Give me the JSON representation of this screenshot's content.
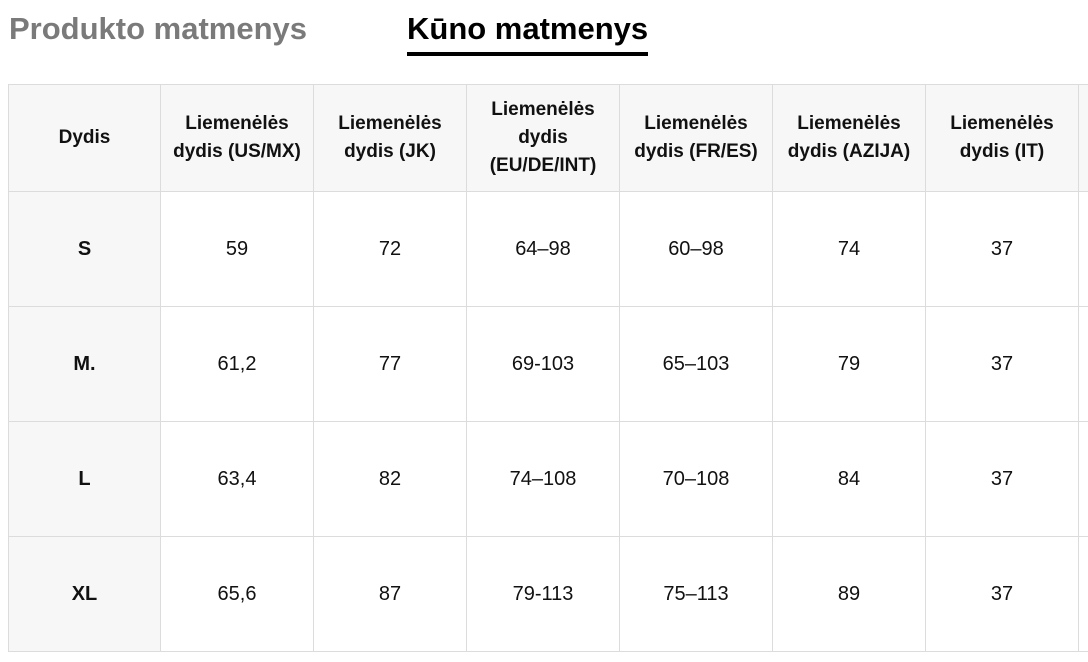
{
  "tabs": {
    "product": "Produkto matmenys",
    "body": "Kūno matmenys"
  },
  "table": {
    "headers": [
      "Dydis",
      "Liemenėlės dydis (US/MX)",
      "Liemenėlės dydis (JK)",
      "Liemenėlės dydis (EU/DE/INT)",
      "Liemenėlės dydis (FR/ES)",
      "Liemenėlės dydis (AZIJA)",
      "Liemenėlės dydis (IT)"
    ],
    "rows": [
      [
        "S",
        "59",
        "72",
        "64–98",
        "60–98",
        "74",
        "37"
      ],
      [
        "M.",
        "61,2",
        "77",
        "69-103",
        "65–103",
        "79",
        "37"
      ],
      [
        "L",
        "63,4",
        "82",
        "74–108",
        "70–108",
        "84",
        "37"
      ],
      [
        "XL",
        "65,6",
        "87",
        "79-113",
        "75–113",
        "89",
        "37"
      ]
    ]
  }
}
